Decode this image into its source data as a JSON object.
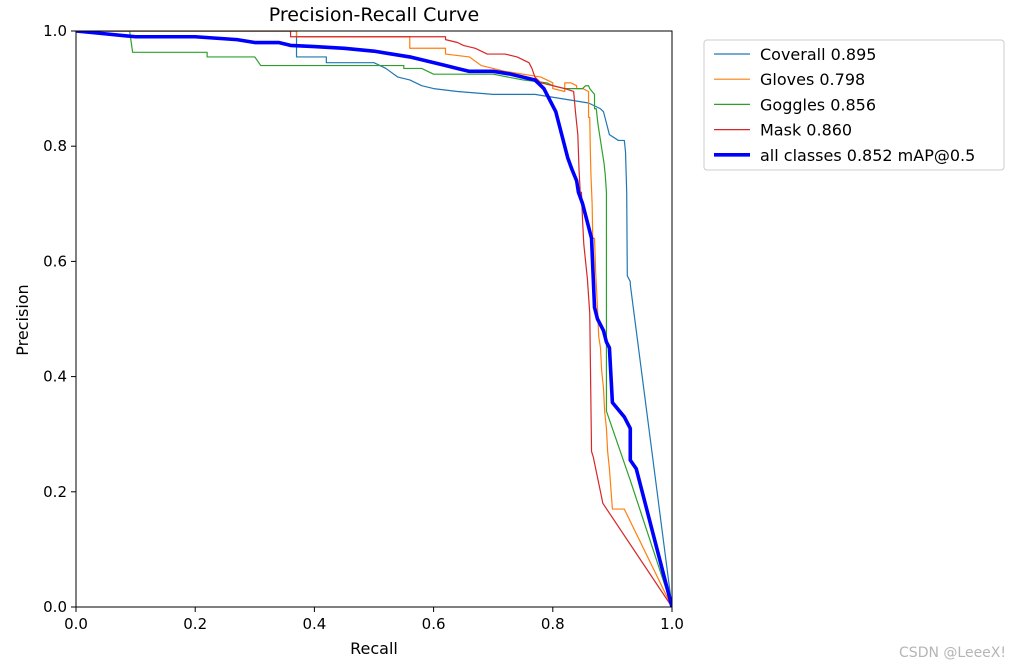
{
  "chart_data": {
    "type": "line",
    "title": "Precision-Recall Curve",
    "xlabel": "Recall",
    "ylabel": "Precision",
    "xlim": [
      0.0,
      1.0
    ],
    "ylim": [
      0.0,
      1.0
    ],
    "x_ticks": [
      0.0,
      0.2,
      0.4,
      0.6,
      0.8,
      1.0
    ],
    "y_ticks": [
      0.0,
      0.2,
      0.4,
      0.6,
      0.8,
      1.0
    ],
    "x_tick_labels": [
      "0.0",
      "0.2",
      "0.4",
      "0.6",
      "0.8",
      "1.0"
    ],
    "y_tick_labels": [
      "0.0",
      "0.2",
      "0.4",
      "0.6",
      "0.8",
      "1.0"
    ],
    "grid": false,
    "legend_position": "outside-right-top",
    "series": [
      {
        "name": "Coverall 0.895",
        "color": "#1f77b4",
        "width": "thin",
        "points": [
          [
            0.0,
            1.0
          ],
          [
            0.37,
            1.0
          ],
          [
            0.37,
            0.955
          ],
          [
            0.42,
            0.955
          ],
          [
            0.42,
            0.945
          ],
          [
            0.5,
            0.945
          ],
          [
            0.52,
            0.935
          ],
          [
            0.54,
            0.92
          ],
          [
            0.56,
            0.915
          ],
          [
            0.58,
            0.905
          ],
          [
            0.6,
            0.9
          ],
          [
            0.64,
            0.895
          ],
          [
            0.7,
            0.89
          ],
          [
            0.77,
            0.89
          ],
          [
            0.8,
            0.885
          ],
          [
            0.83,
            0.88
          ],
          [
            0.86,
            0.875
          ],
          [
            0.87,
            0.87
          ],
          [
            0.88,
            0.865
          ],
          [
            0.885,
            0.86
          ],
          [
            0.89,
            0.84
          ],
          [
            0.895,
            0.82
          ],
          [
            0.91,
            0.81
          ],
          [
            0.92,
            0.81
          ],
          [
            0.922,
            0.79
          ],
          [
            0.924,
            0.72
          ],
          [
            0.925,
            0.575
          ],
          [
            0.93,
            0.565
          ],
          [
            0.93,
            0.56
          ],
          [
            1.0,
            0.0
          ]
        ]
      },
      {
        "name": "Gloves 0.798",
        "color": "#ff7f0e",
        "width": "thin",
        "points": [
          [
            0.0,
            1.0
          ],
          [
            0.37,
            1.0
          ],
          [
            0.37,
            0.99
          ],
          [
            0.56,
            0.99
          ],
          [
            0.56,
            0.97
          ],
          [
            0.62,
            0.97
          ],
          [
            0.62,
            0.96
          ],
          [
            0.66,
            0.955
          ],
          [
            0.68,
            0.94
          ],
          [
            0.72,
            0.93
          ],
          [
            0.78,
            0.92
          ],
          [
            0.8,
            0.91
          ],
          [
            0.8,
            0.9
          ],
          [
            0.82,
            0.895
          ],
          [
            0.82,
            0.91
          ],
          [
            0.83,
            0.91
          ],
          [
            0.84,
            0.905
          ],
          [
            0.84,
            0.9
          ],
          [
            0.85,
            0.9
          ],
          [
            0.86,
            0.895
          ],
          [
            0.86,
            0.85
          ],
          [
            0.862,
            0.85
          ],
          [
            0.863,
            0.79
          ],
          [
            0.864,
            0.75
          ],
          [
            0.866,
            0.7
          ],
          [
            0.867,
            0.64
          ],
          [
            0.87,
            0.64
          ],
          [
            0.872,
            0.58
          ],
          [
            0.875,
            0.52
          ],
          [
            0.877,
            0.47
          ],
          [
            0.88,
            0.45
          ],
          [
            0.882,
            0.41
          ],
          [
            0.885,
            0.38
          ],
          [
            0.887,
            0.34
          ],
          [
            0.89,
            0.31
          ],
          [
            0.892,
            0.27
          ],
          [
            0.895,
            0.24
          ],
          [
            0.9,
            0.17
          ],
          [
            0.92,
            0.17
          ],
          [
            1.0,
            0.0
          ]
        ]
      },
      {
        "name": "Goggles 0.856",
        "color": "#2ca02c",
        "width": "thin",
        "points": [
          [
            0.0,
            1.0
          ],
          [
            0.09,
            1.0
          ],
          [
            0.095,
            0.963
          ],
          [
            0.22,
            0.963
          ],
          [
            0.22,
            0.955
          ],
          [
            0.3,
            0.955
          ],
          [
            0.31,
            0.94
          ],
          [
            0.55,
            0.94
          ],
          [
            0.55,
            0.935
          ],
          [
            0.58,
            0.935
          ],
          [
            0.6,
            0.925
          ],
          [
            0.7,
            0.925
          ],
          [
            0.75,
            0.915
          ],
          [
            0.79,
            0.91
          ],
          [
            0.8,
            0.905
          ],
          [
            0.82,
            0.9
          ],
          [
            0.85,
            0.9
          ],
          [
            0.855,
            0.905
          ],
          [
            0.86,
            0.905
          ],
          [
            0.862,
            0.9
          ],
          [
            0.87,
            0.89
          ],
          [
            0.87,
            0.865
          ],
          [
            0.873,
            0.865
          ],
          [
            0.875,
            0.845
          ],
          [
            0.877,
            0.83
          ],
          [
            0.88,
            0.81
          ],
          [
            0.883,
            0.79
          ],
          [
            0.886,
            0.77
          ],
          [
            0.888,
            0.75
          ],
          [
            0.89,
            0.72
          ],
          [
            0.89,
            0.34
          ],
          [
            0.93,
            0.22
          ],
          [
            1.0,
            0.0
          ]
        ]
      },
      {
        "name": "Mask 0.860",
        "color": "#d62728",
        "width": "thin",
        "points": [
          [
            0.0,
            1.0
          ],
          [
            0.36,
            1.0
          ],
          [
            0.36,
            0.99
          ],
          [
            0.62,
            0.99
          ],
          [
            0.62,
            0.985
          ],
          [
            0.64,
            0.98
          ],
          [
            0.65,
            0.975
          ],
          [
            0.67,
            0.97
          ],
          [
            0.69,
            0.96
          ],
          [
            0.72,
            0.96
          ],
          [
            0.74,
            0.955
          ],
          [
            0.75,
            0.95
          ],
          [
            0.76,
            0.945
          ],
          [
            0.765,
            0.935
          ],
          [
            0.77,
            0.92
          ],
          [
            0.78,
            0.91
          ],
          [
            0.8,
            0.905
          ],
          [
            0.82,
            0.9
          ],
          [
            0.835,
            0.895
          ],
          [
            0.838,
            0.86
          ],
          [
            0.84,
            0.84
          ],
          [
            0.842,
            0.82
          ],
          [
            0.843,
            0.79
          ],
          [
            0.844,
            0.76
          ],
          [
            0.846,
            0.72
          ],
          [
            0.848,
            0.72
          ],
          [
            0.85,
            0.67
          ],
          [
            0.852,
            0.63
          ],
          [
            0.855,
            0.6
          ],
          [
            0.858,
            0.57
          ],
          [
            0.86,
            0.54
          ],
          [
            0.862,
            0.51
          ],
          [
            0.865,
            0.27
          ],
          [
            0.868,
            0.26
          ],
          [
            0.872,
            0.24
          ],
          [
            0.876,
            0.22
          ],
          [
            0.88,
            0.2
          ],
          [
            0.884,
            0.18
          ],
          [
            1.0,
            0.0
          ]
        ]
      },
      {
        "name": "all classes 0.852 mAP@0.5",
        "color": "#0000ff",
        "width": "thick",
        "points": [
          [
            0.0,
            1.0
          ],
          [
            0.05,
            0.995
          ],
          [
            0.1,
            0.99
          ],
          [
            0.2,
            0.99
          ],
          [
            0.27,
            0.985
          ],
          [
            0.3,
            0.98
          ],
          [
            0.34,
            0.98
          ],
          [
            0.36,
            0.975
          ],
          [
            0.4,
            0.973
          ],
          [
            0.45,
            0.97
          ],
          [
            0.5,
            0.965
          ],
          [
            0.53,
            0.96
          ],
          [
            0.56,
            0.955
          ],
          [
            0.58,
            0.95
          ],
          [
            0.6,
            0.945
          ],
          [
            0.62,
            0.94
          ],
          [
            0.64,
            0.935
          ],
          [
            0.66,
            0.93
          ],
          [
            0.7,
            0.93
          ],
          [
            0.73,
            0.925
          ],
          [
            0.75,
            0.92
          ],
          [
            0.77,
            0.915
          ],
          [
            0.785,
            0.9
          ],
          [
            0.795,
            0.88
          ],
          [
            0.805,
            0.86
          ],
          [
            0.81,
            0.84
          ],
          [
            0.815,
            0.82
          ],
          [
            0.82,
            0.8
          ],
          [
            0.825,
            0.78
          ],
          [
            0.832,
            0.76
          ],
          [
            0.84,
            0.74
          ],
          [
            0.843,
            0.72
          ],
          [
            0.85,
            0.7
          ],
          [
            0.855,
            0.68
          ],
          [
            0.86,
            0.66
          ],
          [
            0.865,
            0.64
          ],
          [
            0.87,
            0.52
          ],
          [
            0.875,
            0.5
          ],
          [
            0.885,
            0.48
          ],
          [
            0.89,
            0.46
          ],
          [
            0.895,
            0.45
          ],
          [
            0.9,
            0.355
          ],
          [
            0.92,
            0.33
          ],
          [
            0.93,
            0.31
          ],
          [
            0.93,
            0.255
          ],
          [
            0.94,
            0.24
          ],
          [
            0.95,
            0.2
          ],
          [
            0.96,
            0.16
          ],
          [
            0.97,
            0.12
          ],
          [
            0.98,
            0.08
          ],
          [
            0.99,
            0.04
          ],
          [
            1.0,
            0.0
          ]
        ]
      }
    ]
  },
  "watermark": "CSDN @LeeeX!"
}
